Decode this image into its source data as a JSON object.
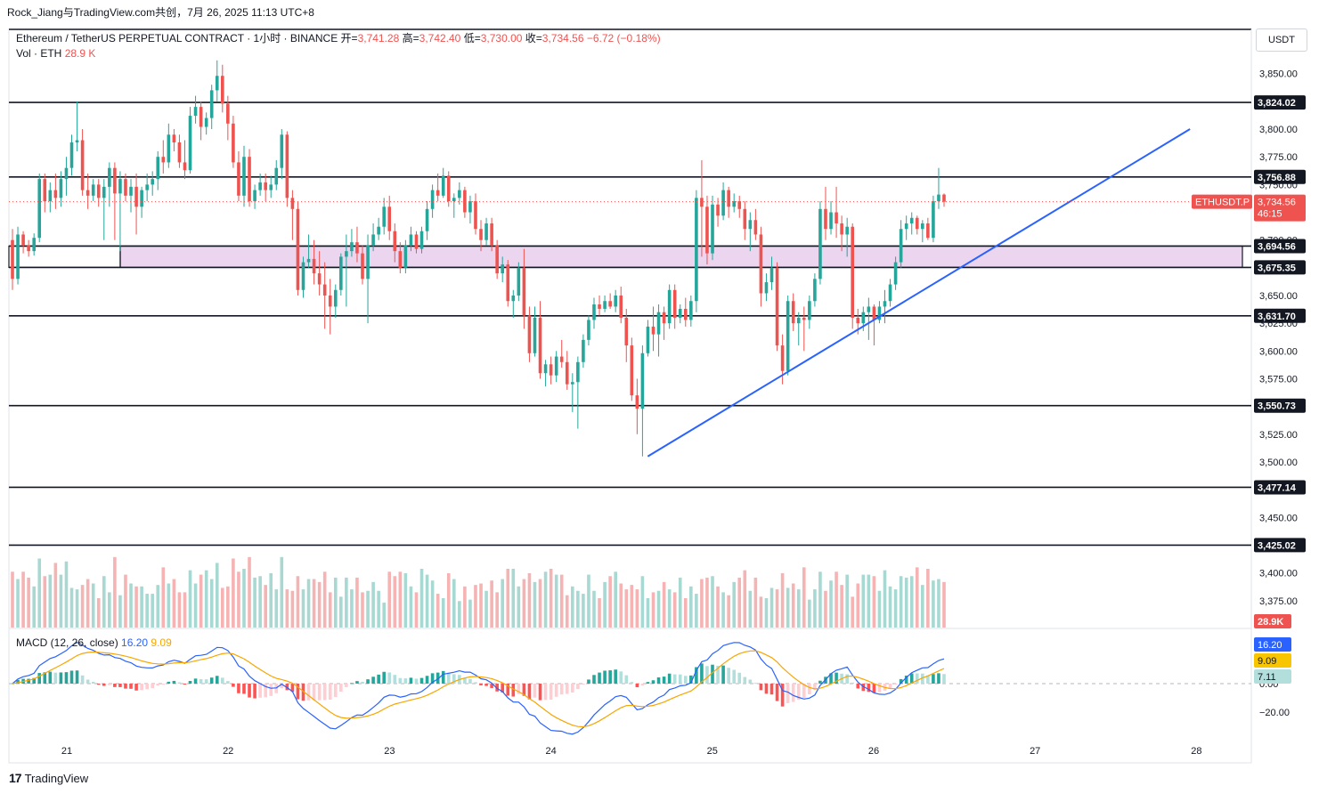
{
  "header": {
    "attribution": "Rock_Jiang与TradingView.com共创，7月 26, 2025 11:13 UTC+8",
    "symbol_line": "Ethereum / TetherUS PERPETUAL CONTRACT · 1小时 · BINANCE",
    "open_label": "开=",
    "open": "3,741.28",
    "high_label": "高=",
    "high": "3,742.40",
    "low_label": "低=",
    "low": "3,730.00",
    "close_label": "收=",
    "close": "3,734.56",
    "change": "−6.72 (−0.18%)",
    "vol_label": "Vol · ETH",
    "vol_value": "28.9 K"
  },
  "currency_button": "USDT",
  "macd_legend": {
    "label": "MACD (12, 26, close)",
    "macd": "16.20",
    "signal": "9.09"
  },
  "footer": {
    "brand_mark": "17",
    "brand_name": "TradingView"
  },
  "colors": {
    "up": "#26a69a",
    "down": "#ef5350",
    "macd": "#2962ff",
    "signal": "#f7a600",
    "zone": "#e1bee7",
    "trendline": "#2962ff"
  },
  "chart_data": {
    "type": "candlestick",
    "timeframe": "1h",
    "price_axis_ticks": [
      3850,
      3825,
      3800,
      3775,
      3750,
      3725,
      3700,
      3675,
      3650,
      3625,
      3600,
      3575,
      3550,
      3525,
      3500,
      3475,
      3450,
      3425,
      3400,
      3375
    ],
    "price_axis_labels": [
      "3,850.00",
      "3,825.00",
      "3,800.00",
      "3,775.00",
      "3,750.00",
      "3,725.00",
      "3,700.00",
      "3,675.00",
      "3,650.00",
      "3,625.00",
      "3,600.00",
      "3,575.00",
      "3,550.00",
      "3,525.00",
      "3,500.00",
      "3,475.00",
      "3,450.00",
      "3,425.00",
      "3,400.00",
      "3,375.00"
    ],
    "price_range": [
      3350,
      3875
    ],
    "x_axis_labels": [
      "21",
      "22",
      "23",
      "24",
      "25",
      "26",
      "27",
      "28"
    ],
    "horizontal_levels": [
      {
        "value": 3824.02,
        "label": "3,824.02"
      },
      {
        "value": 3756.88,
        "label": "3,756.88"
      },
      {
        "value": 3694.56,
        "label": "3,694.56"
      },
      {
        "value": 3675.35,
        "label": "3,675.35"
      },
      {
        "value": 3631.7,
        "label": "3,631.70"
      },
      {
        "value": 3550.73,
        "label": "3,550.73"
      },
      {
        "value": 3477.14,
        "label": "3,477.14"
      },
      {
        "value": 3425.02,
        "label": "3,425.02"
      }
    ],
    "zone": {
      "top": 3694.56,
      "bottom": 3675.35
    },
    "trendline": {
      "start": {
        "day": 24.6,
        "price": 3505
      },
      "end": {
        "day": 27.96,
        "price": 3800
      }
    },
    "last_price": {
      "symbol": "ETHUSDT.P",
      "value": "3,734.56",
      "countdown": "46:15"
    },
    "volume_label": "28.9K",
    "macd": {
      "axis_labels": [
        "0.00",
        "−20.00"
      ],
      "values": {
        "macd": 16.2,
        "signal": 9.09,
        "histogram": 7.11
      },
      "badge_labels": [
        "16.20",
        "9.09",
        "7.11"
      ]
    },
    "candles": [
      [
        3700,
        3710,
        3655,
        3665
      ],
      [
        3665,
        3712,
        3660,
        3705
      ],
      [
        3705,
        3708,
        3688,
        3695
      ],
      [
        3695,
        3700,
        3685,
        3690
      ],
      [
        3690,
        3706,
        3686,
        3702
      ],
      [
        3702,
        3760,
        3698,
        3755
      ],
      [
        3755,
        3760,
        3725,
        3735
      ],
      [
        3735,
        3752,
        3725,
        3745
      ],
      [
        3745,
        3760,
        3728,
        3738
      ],
      [
        3738,
        3762,
        3730,
        3755
      ],
      [
        3755,
        3775,
        3740,
        3765
      ],
      [
        3765,
        3795,
        3758,
        3788
      ],
      [
        3788,
        3825,
        3780,
        3790
      ],
      [
        3790,
        3800,
        3740,
        3745
      ],
      [
        3745,
        3760,
        3728,
        3740
      ],
      [
        3740,
        3755,
        3735,
        3750
      ],
      [
        3750,
        3755,
        3730,
        3738
      ],
      [
        3738,
        3755,
        3700,
        3748
      ],
      [
        3748,
        3770,
        3730,
        3765
      ],
      [
        3765,
        3770,
        3700,
        3742
      ],
      [
        3742,
        3762,
        3690,
        3755
      ],
      [
        3755,
        3760,
        3735,
        3740
      ],
      [
        3740,
        3755,
        3725,
        3748
      ],
      [
        3748,
        3760,
        3705,
        3730
      ],
      [
        3730,
        3748,
        3720,
        3745
      ],
      [
        3745,
        3760,
        3735,
        3750
      ],
      [
        3750,
        3762,
        3740,
        3755
      ],
      [
        3755,
        3780,
        3745,
        3775
      ],
      [
        3775,
        3790,
        3760,
        3770
      ],
      [
        3770,
        3805,
        3765,
        3795
      ],
      [
        3795,
        3800,
        3780,
        3788
      ],
      [
        3788,
        3795,
        3765,
        3770
      ],
      [
        3770,
        3790,
        3755,
        3763
      ],
      [
        3763,
        3820,
        3760,
        3812
      ],
      [
        3812,
        3830,
        3805,
        3820
      ],
      [
        3820,
        3825,
        3790,
        3802
      ],
      [
        3802,
        3815,
        3795,
        3810
      ],
      [
        3810,
        3840,
        3800,
        3835
      ],
      [
        3835,
        3862,
        3825,
        3848
      ],
      [
        3848,
        3858,
        3815,
        3823
      ],
      [
        3823,
        3830,
        3790,
        3805
      ],
      [
        3805,
        3812,
        3765,
        3770
      ],
      [
        3770,
        3780,
        3735,
        3740
      ],
      [
        3740,
        3785,
        3730,
        3775
      ],
      [
        3775,
        3782,
        3730,
        3735
      ],
      [
        3735,
        3750,
        3728,
        3745
      ],
      [
        3745,
        3760,
        3740,
        3752
      ],
      [
        3752,
        3760,
        3735,
        3745
      ],
      [
        3745,
        3758,
        3738,
        3750
      ],
      [
        3750,
        3772,
        3745,
        3765
      ],
      [
        3765,
        3800,
        3755,
        3795
      ],
      [
        3795,
        3798,
        3730,
        3738
      ],
      [
        3738,
        3745,
        3700,
        3728
      ],
      [
        3728,
        3735,
        3650,
        3655
      ],
      [
        3655,
        3685,
        3648,
        3680
      ],
      [
        3680,
        3705,
        3675,
        3683
      ],
      [
        3683,
        3700,
        3660,
        3670
      ],
      [
        3670,
        3690,
        3650,
        3660
      ],
      [
        3660,
        3680,
        3620,
        3650
      ],
      [
        3650,
        3665,
        3615,
        3640
      ],
      [
        3640,
        3660,
        3630,
        3655
      ],
      [
        3655,
        3688,
        3650,
        3685
      ],
      [
        3685,
        3705,
        3640,
        3690
      ],
      [
        3690,
        3710,
        3685,
        3698
      ],
      [
        3698,
        3712,
        3680,
        3688
      ],
      [
        3688,
        3695,
        3660,
        3665
      ],
      [
        3665,
        3705,
        3625,
        3695
      ],
      [
        3695,
        3715,
        3690,
        3705
      ],
      [
        3705,
        3720,
        3700,
        3712
      ],
      [
        3712,
        3738,
        3705,
        3730
      ],
      [
        3730,
        3740,
        3700,
        3708
      ],
      [
        3708,
        3715,
        3680,
        3690
      ],
      [
        3690,
        3698,
        3670,
        3675
      ],
      [
        3675,
        3700,
        3670,
        3695
      ],
      [
        3695,
        3712,
        3690,
        3705
      ],
      [
        3705,
        3708,
        3688,
        3692
      ],
      [
        3692,
        3712,
        3688,
        3708
      ],
      [
        3708,
        3735,
        3700,
        3728
      ],
      [
        3728,
        3750,
        3720,
        3745
      ],
      [
        3745,
        3760,
        3735,
        3740
      ],
      [
        3740,
        3765,
        3738,
        3758
      ],
      [
        3758,
        3762,
        3730,
        3735
      ],
      [
        3735,
        3742,
        3720,
        3738
      ],
      [
        3738,
        3752,
        3732,
        3745
      ],
      [
        3745,
        3748,
        3720,
        3725
      ],
      [
        3725,
        3740,
        3715,
        3735
      ],
      [
        3735,
        3742,
        3705,
        3710
      ],
      [
        3710,
        3718,
        3690,
        3700
      ],
      [
        3700,
        3720,
        3695,
        3715
      ],
      [
        3715,
        3720,
        3690,
        3695
      ],
      [
        3695,
        3700,
        3665,
        3670
      ],
      [
        3670,
        3685,
        3662,
        3678
      ],
      [
        3678,
        3682,
        3640,
        3645
      ],
      [
        3645,
        3655,
        3630,
        3650
      ],
      [
        3650,
        3680,
        3645,
        3675
      ],
      [
        3675,
        3692,
        3620,
        3632
      ],
      [
        3632,
        3640,
        3590,
        3598
      ],
      [
        3598,
        3640,
        3595,
        3630
      ],
      [
        3630,
        3645,
        3575,
        3580
      ],
      [
        3580,
        3592,
        3568,
        3588
      ],
      [
        3588,
        3595,
        3570,
        3578
      ],
      [
        3578,
        3600,
        3572,
        3595
      ],
      [
        3595,
        3610,
        3585,
        3590
      ],
      [
        3590,
        3600,
        3565,
        3570
      ],
      [
        3570,
        3580,
        3545,
        3572
      ],
      [
        3572,
        3595,
        3530,
        3590
      ],
      [
        3590,
        3615,
        3585,
        3610
      ],
      [
        3610,
        3632,
        3605,
        3628
      ],
      [
        3628,
        3648,
        3620,
        3642
      ],
      [
        3642,
        3650,
        3632,
        3638
      ],
      [
        3638,
        3650,
        3635,
        3645
      ],
      [
        3645,
        3652,
        3638,
        3640
      ],
      [
        3640,
        3655,
        3635,
        3650
      ],
      [
        3650,
        3658,
        3625,
        3630
      ],
      [
        3630,
        3638,
        3590,
        3605
      ],
      [
        3605,
        3612,
        3555,
        3560
      ],
      [
        3560,
        3575,
        3525,
        3548
      ],
      [
        3548,
        3605,
        3505,
        3598
      ],
      [
        3598,
        3628,
        3595,
        3622
      ],
      [
        3622,
        3640,
        3600,
        3615
      ],
      [
        3615,
        3642,
        3595,
        3635
      ],
      [
        3635,
        3640,
        3610,
        3625
      ],
      [
        3625,
        3660,
        3620,
        3655
      ],
      [
        3655,
        3660,
        3620,
        3630
      ],
      [
        3630,
        3642,
        3625,
        3638
      ],
      [
        3638,
        3648,
        3622,
        3628
      ],
      [
        3628,
        3650,
        3622,
        3645
      ],
      [
        3645,
        3745,
        3635,
        3738
      ],
      [
        3738,
        3772,
        3685,
        3730
      ],
      [
        3730,
        3740,
        3678,
        3688
      ],
      [
        3688,
        3740,
        3682,
        3732
      ],
      [
        3732,
        3738,
        3712,
        3722
      ],
      [
        3722,
        3752,
        3718,
        3745
      ],
      [
        3745,
        3748,
        3720,
        3730
      ],
      [
        3730,
        3742,
        3725,
        3735
      ],
      [
        3735,
        3740,
        3720,
        3728
      ],
      [
        3728,
        3735,
        3700,
        3710
      ],
      [
        3710,
        3725,
        3690,
        3718
      ],
      [
        3718,
        3728,
        3700,
        3705
      ],
      [
        3705,
        3712,
        3640,
        3652
      ],
      [
        3652,
        3670,
        3645,
        3662
      ],
      [
        3662,
        3685,
        3655,
        3675
      ],
      [
        3675,
        3680,
        3600,
        3605
      ],
      [
        3605,
        3615,
        3570,
        3582
      ],
      [
        3582,
        3650,
        3578,
        3645
      ],
      [
        3645,
        3652,
        3618,
        3625
      ],
      [
        3625,
        3635,
        3605,
        3630
      ],
      [
        3630,
        3640,
        3600,
        3628
      ],
      [
        3628,
        3650,
        3620,
        3645
      ],
      [
        3645,
        3670,
        3640,
        3665
      ],
      [
        3665,
        3735,
        3660,
        3728
      ],
      [
        3728,
        3748,
        3700,
        3710
      ],
      [
        3710,
        3735,
        3705,
        3725
      ],
      [
        3725,
        3748,
        3702,
        3715
      ],
      [
        3715,
        3722,
        3690,
        3705
      ],
      [
        3705,
        3720,
        3685,
        3712
      ],
      [
        3712,
        3715,
        3620,
        3630
      ],
      [
        3630,
        3638,
        3615,
        3625
      ],
      [
        3625,
        3640,
        3618,
        3635
      ],
      [
        3635,
        3648,
        3610,
        3640
      ],
      [
        3640,
        3642,
        3605,
        3628
      ],
      [
        3628,
        3645,
        3625,
        3640
      ],
      [
        3640,
        3655,
        3625,
        3645
      ],
      [
        3645,
        3665,
        3640,
        3660
      ],
      [
        3660,
        3685,
        3655,
        3680
      ],
      [
        3680,
        3718,
        3675,
        3710
      ],
      [
        3710,
        3722,
        3700,
        3715
      ],
      [
        3715,
        3725,
        3705,
        3720
      ],
      [
        3720,
        3722,
        3705,
        3710
      ],
      [
        3710,
        3718,
        3698,
        3715
      ],
      [
        3715,
        3720,
        3700,
        3702
      ],
      [
        3702,
        3740,
        3698,
        3735
      ],
      [
        3735,
        3765,
        3728,
        3741
      ],
      [
        3741,
        3742,
        3730,
        3734.56
      ]
    ],
    "volume_ratios": [
      0.38,
      0.33,
      0.38,
      0.34,
      0.28,
      0.47,
      0.35,
      0.36,
      0.44,
      0.36,
      0.45,
      0.27,
      0.26,
      0.29,
      0.33,
      0.3,
      0.2,
      0.35,
      0.24,
      0.48,
      0.22,
      0.36,
      0.3,
      0.28,
      0.28,
      0.23,
      0.23,
      0.29,
      0.41,
      0.3,
      0.33,
      0.24,
      0.24,
      0.39,
      0.3,
      0.36,
      0.39,
      0.33,
      0.44,
      0.27,
      0.28,
      0.47,
      0.38,
      0.4,
      0.48,
      0.34,
      0.35,
      0.29,
      0.37,
      0.26,
      0.48,
      0.26,
      0.25,
      0.35,
      0.26,
      0.33,
      0.33,
      0.31,
      0.38,
      0.24,
      0.34,
      0.21,
      0.34,
      0.26,
      0.34,
      0.24,
      0.25,
      0.31,
      0.25,
      0.17,
      0.38,
      0.35,
      0.38,
      0.37,
      0.28,
      0.24,
      0.4,
      0.36,
      0.32,
      0.23,
      0.2,
      0.37,
      0.33,
      0.18,
      0.28,
      0.19,
      0.29,
      0.3,
      0.25,
      0.32,
      0.24,
      0.33,
      0.4,
      0.4,
      0.28,
      0.33,
      0.37,
      0.31,
      0.33,
      0.38,
      0.4,
      0.36,
      0.36,
      0.22,
      0.28,
      0.25,
      0.23,
      0.36,
      0.25,
      0.2,
      0.31,
      0.35,
      0.38,
      0.3,
      0.26,
      0.29,
      0.26,
      0.35,
      0.2,
      0.24,
      0.25,
      0.31,
      0.26,
      0.24,
      0.34,
      0.2,
      0.28,
      0.23,
      0.33,
      0.34,
      0.35,
      0.28,
      0.24,
      0.22,
      0.31,
      0.34,
      0.39,
      0.25,
      0.34,
      0.21,
      0.2,
      0.27,
      0.26,
      0.37,
      0.27,
      0.3,
      0.26,
      0.41,
      0.19,
      0.26,
      0.38,
      0.25,
      0.32,
      0.38,
      0.29,
      0.36,
      0.21,
      0.3,
      0.36,
      0.36,
      0.35,
      0.25,
      0.39,
      0.28,
      0.26,
      0.35,
      0.34,
      0.35,
      0.41,
      0.29,
      0.4,
      0.32,
      0.33,
      0.31,
      0.44,
      0.3,
      0.37,
      0.3,
      0.28,
      0.31,
      0.32,
      0.32,
      0.36,
      0.32,
      0.3,
      0.2,
      0.28,
      0.31,
      0.35,
      0.3,
      0.28,
      0.31,
      0.34,
      0.35,
      0.31
    ]
  }
}
